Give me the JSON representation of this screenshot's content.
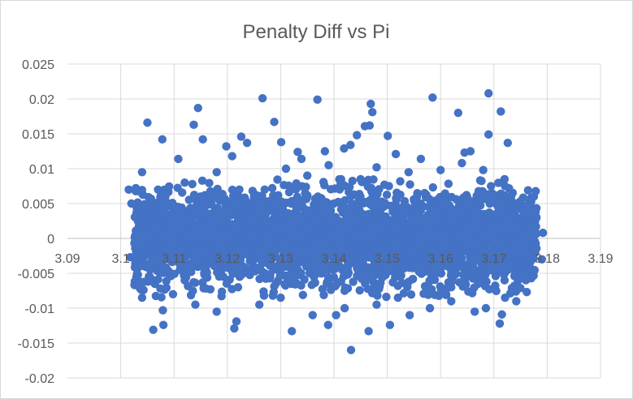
{
  "chart_data": {
    "type": "scatter",
    "title": "Penalty Diff vs Pi",
    "xlabel": "",
    "ylabel": "",
    "xlim": [
      3.09,
      3.19
    ],
    "ylim": [
      -0.02,
      0.025
    ],
    "x_ticks": [
      "3.09",
      "3.1",
      "3.11",
      "3.12",
      "3.13",
      "3.14",
      "3.15",
      "3.16",
      "3.17",
      "3.18",
      "3.19"
    ],
    "y_ticks": [
      "-0.02",
      "-0.015",
      "-0.01",
      "-0.005",
      "0",
      "0.005",
      "0.01",
      "0.015",
      "0.02",
      "0.025"
    ],
    "x_tick_values": [
      3.09,
      3.1,
      3.11,
      3.12,
      3.13,
      3.14,
      3.15,
      3.16,
      3.17,
      3.18,
      3.19
    ],
    "y_tick_values": [
      -0.02,
      -0.015,
      -0.01,
      -0.005,
      0,
      0.005,
      0.01,
      0.015,
      0.02,
      0.025
    ],
    "grid": "horizontal-and-vertical",
    "legend": "none",
    "marker_color": "#4472c4",
    "series": [
      {
        "values": [
          [
            3.1266,
            0.0201
          ],
          [
            3.169,
            0.0208
          ],
          [
            3.1585,
            0.0202
          ],
          [
            3.1369,
            0.0199
          ],
          [
            3.1469,
            0.0193
          ],
          [
            3.1145,
            0.0187
          ],
          [
            3.1713,
            0.0182
          ],
          [
            3.1472,
            0.0181
          ],
          [
            3.1633,
            0.018
          ],
          [
            3.105,
            0.0166
          ],
          [
            3.1288,
            0.0167
          ],
          [
            3.1137,
            0.0163
          ],
          [
            3.1467,
            0.0162
          ],
          [
            3.1458,
            0.0161
          ],
          [
            3.169,
            0.0149
          ],
          [
            3.1443,
            0.0148
          ],
          [
            3.1237,
            0.0137
          ],
          [
            3.1726,
            0.0137
          ],
          [
            3.1301,
            0.0138
          ],
          [
            3.1209,
            0.0118
          ],
          [
            3.1078,
            0.0142
          ],
          [
            3.1383,
            0.0125
          ],
          [
            3.1154,
            0.0142
          ],
          [
            3.1501,
            0.0147
          ],
          [
            3.1419,
            0.0129
          ],
          [
            3.1431,
            0.0134
          ],
          [
            3.1516,
            0.0121
          ],
          [
            3.1563,
            0.0114
          ],
          [
            3.1645,
            0.0123
          ],
          [
            3.1656,
            0.0125
          ],
          [
            3.1108,
            0.0114
          ],
          [
            3.1332,
            0.0124
          ],
          [
            3.1198,
            0.0132
          ],
          [
            3.1226,
            0.0146
          ],
          [
            3.1339,
            0.0114
          ],
          [
            3.107,
            0.007
          ],
          [
            3.112,
            0.008
          ],
          [
            3.118,
            0.0095
          ],
          [
            3.125,
            0.006
          ],
          [
            3.131,
            0.01
          ],
          [
            3.135,
            0.009
          ],
          [
            3.139,
            0.0105
          ],
          [
            3.145,
            0.0085
          ],
          [
            3.148,
            0.0102
          ],
          [
            3.154,
            0.0095
          ],
          [
            3.16,
            0.0098
          ],
          [
            3.164,
            0.0108
          ],
          [
            3.168,
            0.0098
          ],
          [
            3.172,
            0.0085
          ],
          [
            3.104,
            0.0095
          ],
          [
            3.103,
            -0.004
          ],
          [
            3.106,
            -0.006
          ],
          [
            3.102,
            0.005
          ],
          [
            3.178,
            0.003
          ],
          [
            3.179,
            -0.003
          ],
          [
            3.1775,
            0.006
          ],
          [
            3.176,
            -0.006
          ],
          [
            3.1792,
            0.0008
          ],
          [
            3.1018,
            -0.0027
          ],
          [
            3.1015,
            0.007
          ],
          [
            3.104,
            -0.0085
          ],
          [
            3.1061,
            -0.0131
          ],
          [
            3.108,
            -0.0124
          ],
          [
            3.1079,
            -0.0103
          ],
          [
            3.1098,
            -0.008
          ],
          [
            3.1213,
            -0.0129
          ],
          [
            3.1217,
            -0.0119
          ],
          [
            3.1321,
            -0.0133
          ],
          [
            3.1389,
            -0.0124
          ],
          [
            3.1404,
            -0.011
          ],
          [
            3.1432,
            -0.016
          ],
          [
            3.1465,
            -0.0133
          ],
          [
            3.1505,
            -0.0124
          ],
          [
            3.1542,
            -0.011
          ],
          [
            3.1664,
            -0.0105
          ],
          [
            3.1685,
            -0.01
          ],
          [
            3.1711,
            -0.0122
          ],
          [
            3.1715,
            -0.0109
          ],
          [
            3.1721,
            -0.0085
          ],
          [
            3.1742,
            -0.009
          ],
          [
            3.118,
            -0.0105
          ],
          [
            3.126,
            -0.0095
          ],
          [
            3.13,
            -0.0085
          ],
          [
            3.136,
            -0.011
          ],
          [
            3.142,
            -0.01
          ],
          [
            3.148,
            -0.0095
          ],
          [
            3.152,
            -0.0085
          ],
          [
            3.158,
            -0.01
          ],
          [
            3.162,
            -0.009
          ],
          [
            3.114,
            -0.0095
          ],
          [
            3.11,
            0.004
          ],
          [
            3.115,
            -0.002
          ],
          [
            3.12,
            0.001
          ],
          [
            3.125,
            -0.004
          ],
          [
            3.13,
            0.003
          ],
          [
            3.135,
            0.0
          ],
          [
            3.14,
            0.005
          ],
          [
            3.145,
            -0.003
          ],
          [
            3.15,
            0.002
          ],
          [
            3.155,
            -0.001
          ],
          [
            3.16,
            0.0035
          ],
          [
            3.165,
            -0.0045
          ],
          [
            3.17,
            0.0015
          ],
          [
            3.175,
            -0.0025
          ],
          [
            3.112,
            -0.006
          ],
          [
            3.117,
            0.0065
          ],
          [
            3.122,
            -0.007
          ],
          [
            3.127,
            0.007
          ],
          [
            3.132,
            -0.0065
          ],
          [
            3.137,
            0.006
          ],
          [
            3.142,
            -0.0075
          ],
          [
            3.147,
            0.0068
          ],
          [
            3.152,
            -0.0068
          ],
          [
            3.157,
            0.0065
          ],
          [
            3.162,
            -0.007
          ],
          [
            3.167,
            0.0062
          ],
          [
            3.172,
            -0.006
          ],
          [
            3.109,
            0.002
          ],
          [
            3.176,
            0.002
          ],
          [
            3.108,
            -0.003
          ]
        ]
      }
    ]
  }
}
